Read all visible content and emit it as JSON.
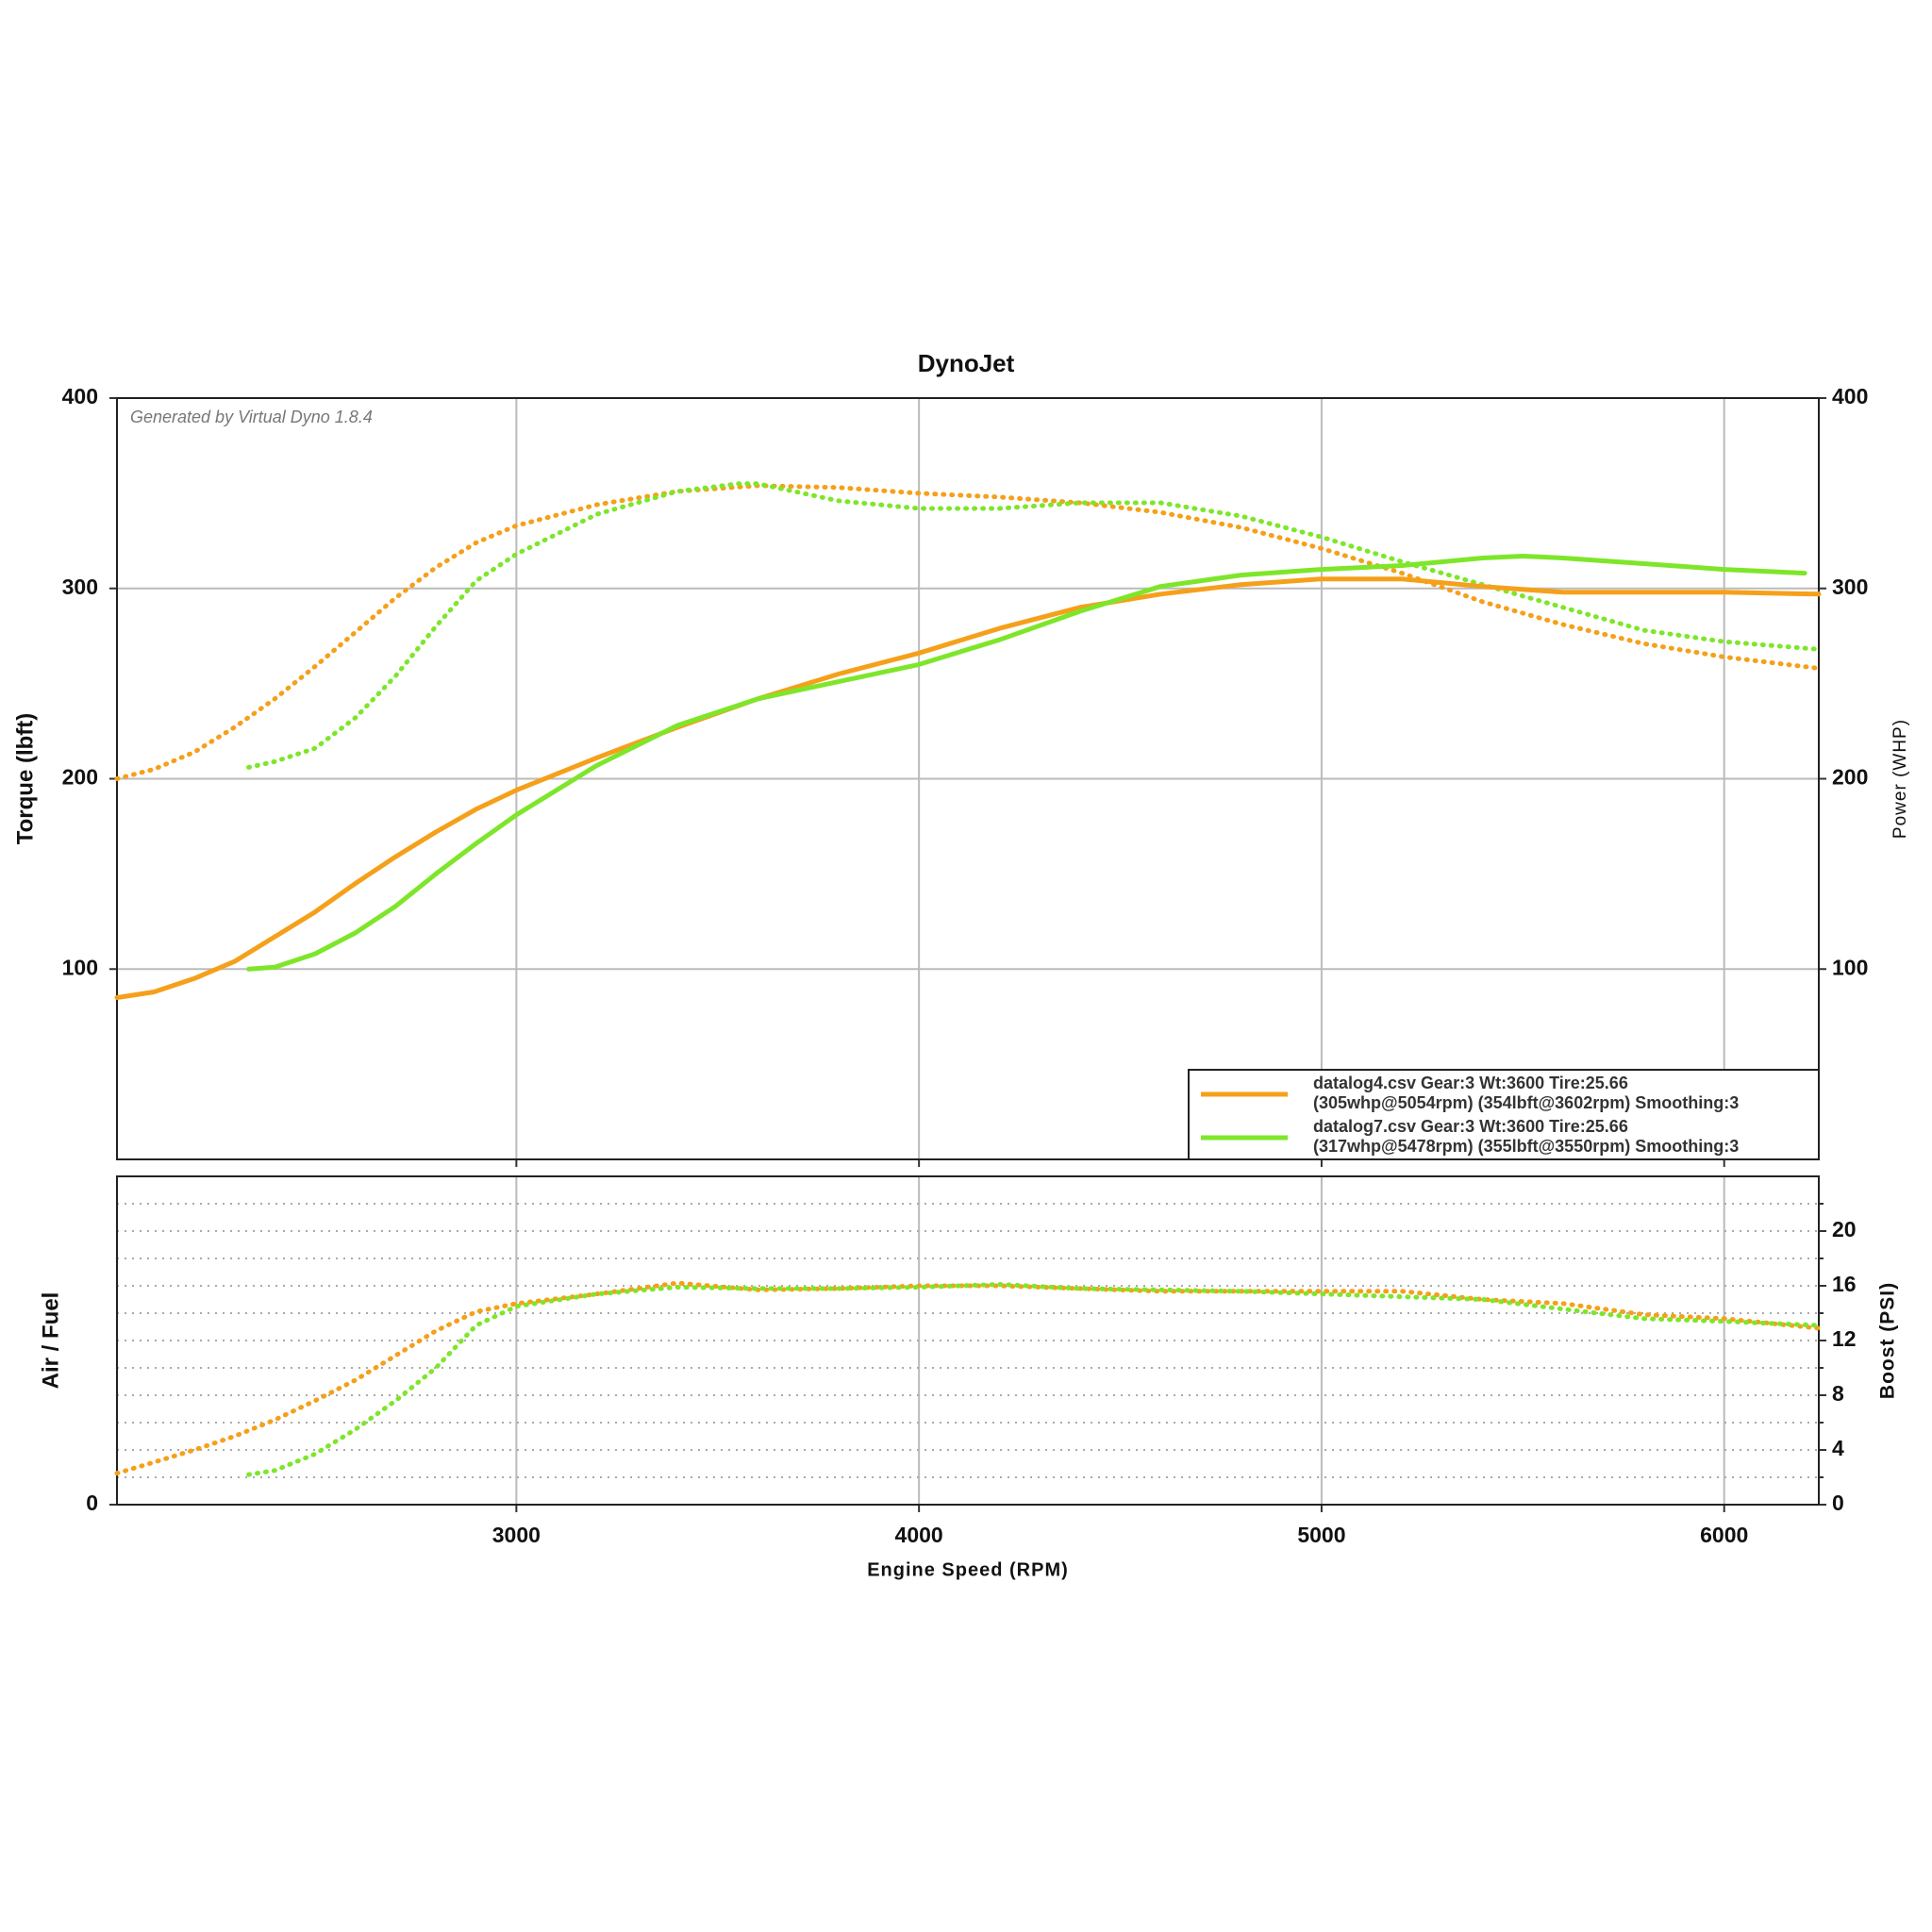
{
  "chart_data": [
    {
      "type": "line",
      "title": "DynoJet",
      "annotation": "Generated by Virtual Dyno 1.8.4",
      "ylabel": "Torque (lbft)",
      "y2label": "Power (WHP)",
      "xlim": [
        2008,
        6235
      ],
      "xticks": [
        3000,
        4000,
        5000,
        6000
      ],
      "xticklabels": false,
      "ylim": [
        0,
        400
      ],
      "yticks": [
        100,
        200,
        300,
        400
      ],
      "y2lim": [
        0,
        400
      ],
      "y2ticks": [
        100,
        200,
        300,
        400
      ],
      "grid": true,
      "ygrid_style": "solid",
      "legend": {
        "position": "lower right",
        "entries": [
          {
            "color": "#f5a01a",
            "lines": [
              "datalog4.csv Gear:3 Wt:3600 Tire:25.66",
              "(305whp@5054rpm) (354lbft@3602rpm)  Smoothing:3"
            ]
          },
          {
            "color": "#7ee62a",
            "lines": [
              "datalog7.csv Gear:3 Wt:3600 Tire:25.66",
              "(317whp@5478rpm) (355lbft@3550rpm)  Smoothing:3"
            ]
          }
        ]
      },
      "series": [
        {
          "color": "#f5a01a",
          "style": "dotted",
          "axis": "y",
          "x": [
            2008,
            2100,
            2200,
            2300,
            2400,
            2500,
            2600,
            2700,
            2800,
            2900,
            3000,
            3200,
            3400,
            3600,
            3800,
            4000,
            4200,
            4400,
            4600,
            4800,
            5000,
            5200,
            5400,
            5600,
            5800,
            6000,
            6235
          ],
          "values": [
            200,
            205,
            214,
            227,
            242,
            259,
            277,
            295,
            311,
            324,
            333,
            344,
            351,
            354,
            353,
            350,
            348,
            345,
            340,
            332,
            321,
            308,
            293,
            281,
            271,
            264,
            258
          ]
        },
        {
          "color": "#7ee62a",
          "style": "dotted",
          "axis": "y",
          "x": [
            2335,
            2400,
            2500,
            2600,
            2700,
            2800,
            2900,
            3000,
            3200,
            3400,
            3550,
            3600,
            3800,
            4000,
            4200,
            4400,
            4600,
            4800,
            5000,
            5200,
            5400,
            5600,
            5800,
            6000,
            6235
          ],
          "values": [
            206,
            209,
            216,
            232,
            254,
            280,
            304,
            318,
            339,
            351,
            355,
            355,
            346,
            342,
            342,
            345,
            345,
            338,
            327,
            314,
            302,
            290,
            278,
            272,
            268
          ]
        },
        {
          "color": "#f5a01a",
          "style": "solid",
          "axis": "y2",
          "x": [
            2008,
            2100,
            2200,
            2300,
            2400,
            2500,
            2600,
            2700,
            2800,
            2900,
            3000,
            3200,
            3400,
            3600,
            3800,
            4000,
            4200,
            4400,
            4600,
            4800,
            5000,
            5200,
            5400,
            5600,
            5800,
            6000,
            6235
          ],
          "values": [
            85,
            88,
            95,
            104,
            117,
            130,
            145,
            159,
            172,
            184,
            194,
            211,
            227,
            242,
            255,
            266,
            279,
            290,
            297,
            302,
            305,
            305,
            301,
            298,
            298,
            298,
            297
          ]
        },
        {
          "color": "#7ee62a",
          "style": "solid",
          "axis": "y2",
          "x": [
            2335,
            2400,
            2500,
            2600,
            2700,
            2800,
            2900,
            3000,
            3200,
            3400,
            3600,
            3800,
            4000,
            4200,
            4400,
            4600,
            4800,
            5000,
            5200,
            5400,
            5500,
            5600,
            5800,
            6000,
            6200
          ],
          "values": [
            100,
            101,
            108,
            119,
            133,
            150,
            166,
            181,
            207,
            228,
            242,
            251,
            260,
            273,
            288,
            301,
            307,
            310,
            312,
            316,
            317,
            316,
            313,
            310,
            308
          ]
        }
      ]
    },
    {
      "type": "line",
      "ylabel": "Air / Fuel",
      "y2label": "Boost (PSI)",
      "xlabel": "Engine Speed (RPM)",
      "xlim": [
        2008,
        6235
      ],
      "xticks": [
        3000,
        4000,
        5000,
        6000
      ],
      "xticklabels": true,
      "ylim": [
        0,
        24
      ],
      "yticks": [
        0
      ],
      "y2lim": [
        0,
        24
      ],
      "y2ticks": [
        0,
        4,
        8,
        12,
        16,
        20
      ],
      "y2minorticks": [
        2,
        6,
        10,
        14,
        18,
        22
      ],
      "grid": true,
      "ygrid_style": "dotted",
      "series": [
        {
          "color": "#f5a01a",
          "style": "dotted",
          "axis": "y2",
          "x": [
            2008,
            2100,
            2200,
            2300,
            2400,
            2500,
            2600,
            2700,
            2800,
            2900,
            3000,
            3200,
            3400,
            3600,
            3800,
            4000,
            4200,
            4400,
            4600,
            4800,
            5000,
            5200,
            5400,
            5600,
            5800,
            6000,
            6235
          ],
          "values": [
            2.3,
            3.1,
            4,
            5,
            6.2,
            7.6,
            9.1,
            10.9,
            12.7,
            14.1,
            14.7,
            15.4,
            16.2,
            15.7,
            15.8,
            16,
            16,
            15.8,
            15.6,
            15.6,
            15.6,
            15.6,
            15,
            14.7,
            13.9,
            13.6,
            12.9
          ]
        },
        {
          "color": "#7ee62a",
          "style": "dotted",
          "axis": "y2",
          "x": [
            2335,
            2400,
            2500,
            2600,
            2700,
            2800,
            2900,
            3000,
            3200,
            3400,
            3600,
            3800,
            4000,
            4200,
            4400,
            4600,
            4800,
            5000,
            5200,
            5400,
            5600,
            5800,
            6000,
            6235
          ],
          "values": [
            2.2,
            2.5,
            3.7,
            5.5,
            7.6,
            10,
            13.1,
            14.5,
            15.4,
            15.9,
            15.8,
            15.8,
            15.9,
            16.1,
            15.8,
            15.7,
            15.6,
            15.4,
            15.2,
            15,
            14.3,
            13.6,
            13.4,
            13.1
          ]
        }
      ]
    }
  ]
}
